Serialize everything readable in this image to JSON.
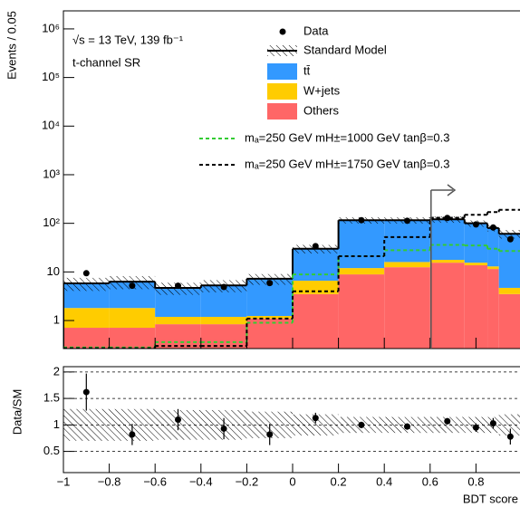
{
  "chart_data": [
    {
      "type": "histogram",
      "ylabel": "Events / 0.05",
      "annotations": [
        "√s = 13 TeV, 139 fb⁻¹",
        "t-channel SR"
      ],
      "bins": [
        -1,
        -0.8,
        -0.6,
        -0.4,
        -0.2,
        0,
        0.2,
        0.4,
        0.6,
        0.75,
        0.85,
        0.9,
        1.0
      ],
      "stacked": [
        {
          "name": "Others",
          "color": "#ff6666",
          "values": [
            0.71,
            0.71,
            0.84,
            0.84,
            1.1,
            3.5,
            8.9,
            12.5,
            15.5,
            13.7,
            11.5,
            3.5
          ]
        },
        {
          "name": "W+jets",
          "color": "#ffcc00",
          "values": [
            1.1,
            1.1,
            0.35,
            0.35,
            0.14,
            3.1,
            3.1,
            3.5,
            2.2,
            1.8,
            1.5,
            1.2
          ]
        },
        {
          "name": "tt̄",
          "color": "#3399ff",
          "values": [
            4.0,
            4.5,
            3.5,
            4.1,
            6.0,
            23.4,
            104,
            100,
            103,
            84.5,
            67,
            56
          ]
        }
      ],
      "sm": {
        "name": "Standard Model",
        "rel_uncertainty": [
          0.3,
          0.3,
          0.28,
          0.28,
          0.25,
          0.2,
          0.15,
          0.15,
          0.15,
          0.15,
          0.15,
          0.2
        ]
      },
      "signals": [
        {
          "name": "mₐ=250 GeV mH±=1000 GeV tanβ=0.3",
          "color": "#33cc33",
          "values": [
            0.28,
            0.28,
            0.36,
            0.36,
            0.9,
            8.9,
            21,
            28,
            36,
            35,
            30,
            27
          ]
        },
        {
          "name": "mₐ=250 GeV mH±=1750 GeV tanβ=0.3",
          "color": "#000000",
          "values": [
            0.27,
            0.27,
            0.3,
            0.3,
            1.1,
            4,
            21,
            52,
            130,
            150,
            170,
            190
          ]
        }
      ],
      "data": {
        "name": "Data",
        "x": [
          -0.9,
          -0.7,
          -0.5,
          -0.3,
          -0.1,
          0.1,
          0.3,
          0.5,
          0.675,
          0.8,
          0.875,
          0.95
        ],
        "values": [
          9.4,
          5.2,
          5.2,
          4.9,
          5.9,
          34,
          116,
          113,
          129,
          95,
          82,
          47
        ]
      },
      "xlim": [
        -1,
        1
      ],
      "ylim": [
        0.265,
        2350000
      ],
      "log_scale": true,
      "yticks": [
        1,
        10,
        {
          "value": 100,
          "label": "10²"
        },
        {
          "value": 1000,
          "label": "10³"
        },
        {
          "value": 10000,
          "label": "10⁴"
        },
        {
          "value": 100000,
          "label": "10⁵"
        },
        {
          "value": 1000000,
          "label": "10⁶"
        }
      ]
    },
    {
      "type": "scatter",
      "ylabel": "Data/SM",
      "xlabel": "BDT score",
      "x": [
        -0.9,
        -0.7,
        -0.5,
        -0.3,
        -0.1,
        0.1,
        0.3,
        0.5,
        0.675,
        0.8,
        0.875,
        0.95
      ],
      "values": [
        1.62,
        0.82,
        1.1,
        0.93,
        0.82,
        1.13,
        1.0,
        0.97,
        1.07,
        0.95,
        1.03,
        0.78
      ],
      "errors": [
        0.35,
        0.2,
        0.2,
        0.2,
        0.2,
        0.1,
        0.06,
        0.06,
        0.06,
        0.08,
        0.1,
        0.15
      ],
      "xlim": [
        -1,
        1
      ],
      "ylim": [
        0.1,
        2.1
      ],
      "yticks": [
        0.5,
        1,
        1.5,
        2
      ],
      "xticks": [
        {
          "value": -1,
          "label": "−1"
        },
        {
          "value": -0.8,
          "label": "−0.8"
        },
        {
          "value": -0.6,
          "label": "−0.6"
        },
        {
          "value": -0.4,
          "label": "−0.4"
        },
        {
          "value": -0.2,
          "label": "−0.2"
        },
        0,
        0.2,
        0.4,
        0.6,
        0.8
      ],
      "grid": true
    }
  ]
}
